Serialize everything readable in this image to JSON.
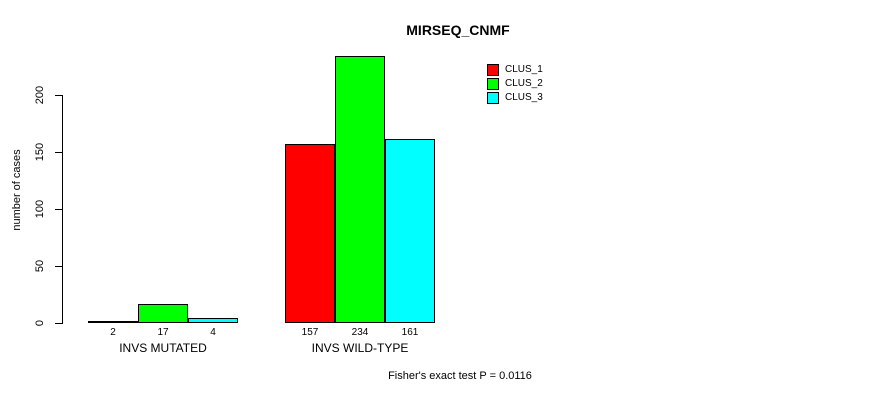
{
  "title": "MIRSEQ_CNMF",
  "caption": "Fisher's exact test P = 0.0116",
  "y_axis": {
    "label": "number of cases",
    "tick_labels": [
      "0",
      "50",
      "100",
      "150",
      "200"
    ]
  },
  "legend": {
    "items": [
      {
        "label": "CLUS_1",
        "color": "#ff0000"
      },
      {
        "label": "CLUS_2",
        "color": "#00ff00"
      },
      {
        "label": "CLUS_3",
        "color": "#00ffff"
      }
    ]
  },
  "chart_data": {
    "type": "bar",
    "title": "MIRSEQ_CNMF",
    "categories": [
      "INVS MUTATED",
      "INVS WILD-TYPE"
    ],
    "series": [
      {
        "name": "CLUS_1",
        "color": "#ff0000",
        "values": [
          2,
          157
        ]
      },
      {
        "name": "CLUS_2",
        "color": "#00ff00",
        "values": [
          17,
          234
        ]
      },
      {
        "name": "CLUS_3",
        "color": "#00ffff",
        "values": [
          4,
          161
        ]
      }
    ],
    "xlabel": "",
    "ylabel": "number of cases",
    "ylim": [
      0,
      240
    ],
    "yticks": [
      0,
      50,
      100,
      150,
      200
    ],
    "grid": false,
    "legend_position": "inside-top-right",
    "bar_value_labels": true,
    "annotation": "Fisher's exact test P = 0.0116"
  }
}
